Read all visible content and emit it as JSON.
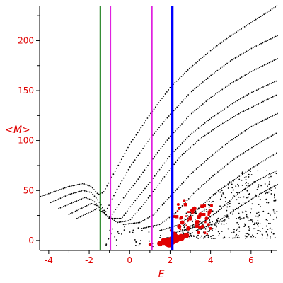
{
  "chart_data": {
    "type": "scatter",
    "title": "",
    "xlabel": "E",
    "ylabel": "<M>",
    "xlim": [
      -4.45,
      7.3
    ],
    "ylim": [
      -10,
      235
    ],
    "xticks": [
      -4,
      -2,
      0,
      2,
      4,
      6
    ],
    "yticks": [
      0,
      50,
      100,
      150,
      200
    ],
    "tick_color": "#e00000",
    "vertical_lines": [
      {
        "x": -1.45,
        "color": "#007000"
      },
      {
        "x": -0.95,
        "color": "#e020e0"
      },
      {
        "x": 1.1,
        "color": "#e020e0"
      },
      {
        "x": 2.1,
        "color": "#0000ff",
        "thick": true
      }
    ],
    "series": [
      {
        "color": "#000000",
        "bands": [
          {
            "x0": -4.4,
            "x1": 7.3,
            "points": [
              [
                -4.4,
                44
              ],
              [
                -3.0,
                54
              ],
              [
                -2.3,
                57
              ],
              [
                -1.9,
                54
              ],
              [
                -1.55,
                46
              ],
              [
                -1.3,
                48
              ],
              [
                -0.7,
                70
              ],
              [
                0,
                96
              ],
              [
                1,
                126
              ],
              [
                2,
                153
              ],
              [
                3,
                173
              ],
              [
                4,
                190
              ],
              [
                5,
                205
              ],
              [
                6,
                218
              ],
              [
                7.3,
                235
              ]
            ]
          },
          {
            "x0": -3.9,
            "x1": 7.3,
            "points": [
              [
                -3.9,
                38
              ],
              [
                -3.0,
                46
              ],
              [
                -2.3,
                50
              ],
              [
                -1.9,
                48
              ],
              [
                -1.55,
                40
              ],
              [
                -1.2,
                28
              ],
              [
                -0.6,
                52
              ],
              [
                0,
                73
              ],
              [
                1,
                102
              ],
              [
                2,
                126
              ],
              [
                3,
                148
              ],
              [
                4,
                165
              ],
              [
                5,
                180
              ],
              [
                6,
                192
              ],
              [
                7.3,
                205
              ]
            ]
          },
          {
            "x0": -3.5,
            "x1": 7.3,
            "points": [
              [
                -3.5,
                32
              ],
              [
                -2.8,
                38
              ],
              [
                -2.2,
                43
              ],
              [
                -1.8,
                40
              ],
              [
                -1.45,
                32
              ],
              [
                -1.0,
                22
              ],
              [
                -0.4,
                40
              ],
              [
                0.3,
                58
              ],
              [
                1,
                78
              ],
              [
                2,
                104
              ],
              [
                3,
                126
              ],
              [
                4,
                143
              ],
              [
                5,
                157
              ],
              [
                6,
                169
              ],
              [
                7.3,
                182
              ]
            ]
          },
          {
            "x0": -3.0,
            "x1": 7.3,
            "points": [
              [
                -3.0,
                26
              ],
              [
                -2.4,
                32
              ],
              [
                -1.9,
                37
              ],
              [
                -1.5,
                34
              ],
              [
                -1.0,
                22
              ],
              [
                -0.4,
                22
              ],
              [
                0.2,
                38
              ],
              [
                1,
                58
              ],
              [
                2,
                85
              ],
              [
                3,
                106
              ],
              [
                4,
                122
              ],
              [
                5,
                136
              ],
              [
                6,
                148
              ],
              [
                7.3,
                160
              ]
            ]
          },
          {
            "x0": -2.6,
            "x1": 7.3,
            "points": [
              [
                -2.6,
                22
              ],
              [
                -2.0,
                28
              ],
              [
                -1.6,
                32
              ],
              [
                -1.2,
                26
              ],
              [
                -0.6,
                18
              ],
              [
                0,
                20
              ],
              [
                0.6,
                34
              ],
              [
                1.5,
                58
              ],
              [
                2.5,
                84
              ],
              [
                3.5,
                102
              ],
              [
                4.5,
                116
              ],
              [
                5.5,
                128
              ],
              [
                6.5,
                138
              ],
              [
                7.3,
                146
              ]
            ]
          },
          {
            "x0": -0.3,
            "x1": 7.3,
            "points": [
              [
                -0.3,
                16
              ],
              [
                0.5,
                18
              ],
              [
                1.2,
                26
              ],
              [
                2.0,
                44
              ],
              [
                3.0,
                66
              ],
              [
                4.0,
                84
              ],
              [
                5.0,
                100
              ],
              [
                6.0,
                114
              ],
              [
                7.3,
                127
              ]
            ]
          },
          {
            "x0": 0.6,
            "x1": 7.3,
            "points": [
              [
                0.6,
                12
              ],
              [
                1.5,
                16
              ],
              [
                2.3,
                28
              ],
              [
                3.2,
                48
              ],
              [
                4.2,
                66
              ],
              [
                5.2,
                82
              ],
              [
                6.2,
                95
              ],
              [
                7.3,
                108
              ]
            ]
          },
          {
            "x0": 1.5,
            "x1": 7.3,
            "points": [
              [
                1.5,
                10
              ],
              [
                2.5,
                16
              ],
              [
                3.4,
                32
              ],
              [
                4.4,
                50
              ],
              [
                5.4,
                64
              ],
              [
                6.4,
                77
              ],
              [
                7.3,
                88
              ]
            ]
          },
          {
            "x0": 2.3,
            "x1": 7.3,
            "points": [
              [
                2.3,
                8
              ],
              [
                3.3,
                14
              ],
              [
                4.3,
                28
              ],
              [
                5.3,
                46
              ],
              [
                6.3,
                60
              ],
              [
                7.3,
                70
              ]
            ]
          },
          {
            "x0": 3.3,
            "x1": 7.3,
            "points": [
              [
                3.3,
                10
              ],
              [
                4.3,
                18
              ],
              [
                5.3,
                32
              ],
              [
                6.3,
                45
              ],
              [
                7.3,
                56
              ]
            ]
          }
        ],
        "scatter_region": {
          "x": [
            2.6,
            7.3
          ],
          "y": [
            2,
            70
          ]
        }
      },
      {
        "color": "#e00000",
        "points": [
          [
            1.95,
            -2,
            7
          ],
          [
            2.1,
            0,
            6
          ],
          [
            2.3,
            2,
            6
          ],
          [
            2.55,
            3,
            5
          ],
          [
            1.7,
            -1,
            5
          ],
          [
            1.5,
            -3,
            4
          ],
          [
            2.8,
            5,
            4
          ],
          [
            2.2,
            6,
            4
          ],
          [
            2.45,
            14,
            3
          ],
          [
            2.6,
            18,
            3
          ],
          [
            3.0,
            22,
            3
          ],
          [
            2.9,
            12,
            3
          ],
          [
            3.1,
            30,
            3
          ],
          [
            3.2,
            32,
            3
          ],
          [
            3.5,
            26,
            3
          ],
          [
            3.3,
            18,
            2.5
          ],
          [
            3.6,
            14,
            2.5
          ],
          [
            3.8,
            22,
            2.5
          ],
          [
            2.4,
            36,
            2
          ],
          [
            2.7,
            40,
            2
          ],
          [
            2.2,
            24,
            2
          ],
          [
            3.9,
            16,
            2
          ],
          [
            2.05,
            10,
            2
          ],
          [
            1.0,
            -4,
            2
          ],
          [
            3.4,
            8,
            2.5
          ],
          [
            4.0,
            12,
            2
          ]
        ]
      }
    ]
  }
}
